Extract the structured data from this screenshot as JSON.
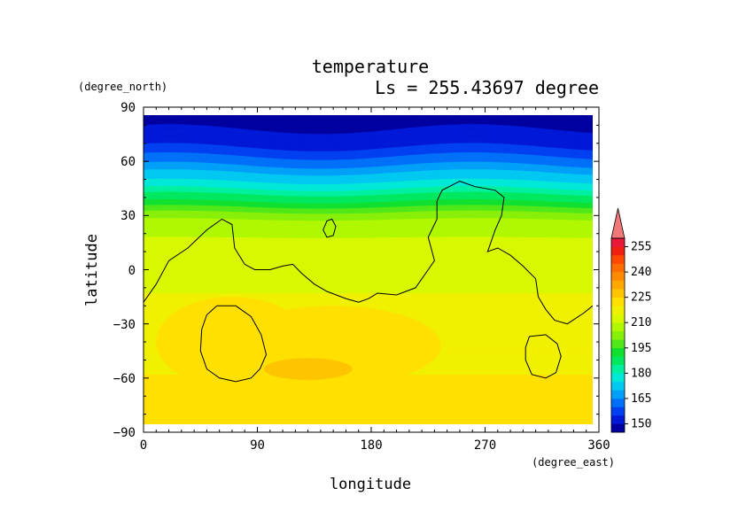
{
  "chart_data": {
    "type": "heatmap",
    "title": "temperature",
    "subtitle": "Ls = 255.43697 degree",
    "xlabel": "longitude",
    "ylabel": "latitude",
    "x_units": "(degree_east)",
    "y_units": "(degree_north)",
    "xlim": [
      0,
      360
    ],
    "ylim": [
      -90,
      90
    ],
    "x_ticks": [
      "0",
      "90",
      "180",
      "270",
      "360"
    ],
    "y_ticks": [
      "90",
      "60",
      "30",
      "0",
      "−30",
      "−60",
      "−90"
    ],
    "colorbar": {
      "labels": [
        "255",
        "240",
        "225",
        "210",
        "195",
        "180",
        "165",
        "150"
      ],
      "levels": [
        145,
        150,
        155,
        160,
        165,
        170,
        175,
        180,
        185,
        190,
        195,
        200,
        205,
        210,
        215,
        220,
        225,
        230,
        235,
        240,
        245,
        250,
        255,
        260
      ],
      "colors": [
        "#0000a0",
        "#0018d8",
        "#0040f0",
        "#0070f8",
        "#00a0f8",
        "#00c8f0",
        "#00e8d8",
        "#00f0a0",
        "#00e860",
        "#10e030",
        "#50e818",
        "#88f008",
        "#b0f800",
        "#d8f800",
        "#f0f000",
        "#ffe000",
        "#ffc400",
        "#ffa800",
        "#ff8c00",
        "#ff6c00",
        "#ff4800",
        "#f02010",
        "#e81838"
      ],
      "over_color": "#f07878"
    },
    "lat_profile": [
      {
        "lat": -88,
        "temp": 224
      },
      {
        "lat": -70,
        "temp": 223
      },
      {
        "lat": -58,
        "temp": 220
      },
      {
        "lat": -40,
        "temp": 219
      },
      {
        "lat": -20,
        "temp": 216
      },
      {
        "lat": 0,
        "temp": 213
      },
      {
        "lat": 15,
        "temp": 211
      },
      {
        "lat": 25,
        "temp": 208
      },
      {
        "lat": 32,
        "temp": 200
      },
      {
        "lat": 38,
        "temp": 190
      },
      {
        "lat": 45,
        "temp": 180
      },
      {
        "lat": 52,
        "temp": 172
      },
      {
        "lat": 60,
        "temp": 163
      },
      {
        "lat": 68,
        "temp": 155
      },
      {
        "lat": 78,
        "temp": 150
      },
      {
        "lat": 88,
        "temp": 148
      }
    ],
    "warm_patches": [
      {
        "lon": 150,
        "lat": -42,
        "rlon": 85,
        "rlat": 22,
        "temp": 221
      },
      {
        "lon": 70,
        "lat": -40,
        "rlon": 60,
        "rlat": 25,
        "temp": 221
      },
      {
        "lon": 130,
        "lat": -55,
        "rlon": 35,
        "rlat": 6,
        "temp": 226
      }
    ],
    "contours": [
      [
        [
          0,
          -18
        ],
        [
          10,
          -8
        ],
        [
          20,
          5
        ],
        [
          35,
          12
        ],
        [
          50,
          22
        ],
        [
          62,
          28
        ],
        [
          70,
          25
        ],
        [
          72,
          12
        ],
        [
          80,
          3
        ],
        [
          88,
          0
        ],
        [
          100,
          0
        ],
        [
          110,
          2
        ],
        [
          118,
          3
        ],
        [
          125,
          -2
        ],
        [
          135,
          -8
        ],
        [
          145,
          -12
        ],
        [
          160,
          -16
        ],
        [
          170,
          -18
        ],
        [
          178,
          -16
        ],
        [
          185,
          -13
        ],
        [
          200,
          -14
        ],
        [
          215,
          -10
        ],
        [
          225,
          0
        ],
        [
          230,
          5
        ],
        [
          225,
          18
        ],
        [
          232,
          28
        ],
        [
          232,
          38
        ],
        [
          236,
          44
        ],
        [
          250,
          49
        ],
        [
          262,
          46
        ],
        [
          278,
          44
        ],
        [
          285,
          40
        ],
        [
          283,
          30
        ],
        [
          278,
          22
        ],
        [
          272,
          10
        ],
        [
          280,
          12
        ],
        [
          290,
          8
        ],
        [
          300,
          2
        ],
        [
          310,
          -5
        ],
        [
          312,
          -15
        ],
        [
          318,
          -22
        ],
        [
          325,
          -28
        ],
        [
          335,
          -30
        ],
        [
          348,
          -24
        ],
        [
          355,
          -20
        ]
      ],
      [
        [
          142,
          22
        ],
        [
          145,
          27
        ],
        [
          149,
          28
        ],
        [
          152,
          24
        ],
        [
          150,
          19
        ],
        [
          145,
          18
        ],
        [
          142,
          22
        ]
      ],
      [
        [
          58,
          -20
        ],
        [
          73,
          -20
        ],
        [
          85,
          -26
        ],
        [
          93,
          -36
        ],
        [
          97,
          -47
        ],
        [
          92,
          -55
        ],
        [
          85,
          -60
        ],
        [
          73,
          -62
        ],
        [
          60,
          -60
        ],
        [
          50,
          -55
        ],
        [
          45,
          -45
        ],
        [
          46,
          -33
        ],
        [
          50,
          -25
        ],
        [
          58,
          -20
        ]
      ],
      [
        [
          305,
          -37
        ],
        [
          318,
          -36
        ],
        [
          327,
          -41
        ],
        [
          330,
          -48
        ],
        [
          326,
          -57
        ],
        [
          318,
          -60
        ],
        [
          307,
          -58
        ],
        [
          302,
          -50
        ],
        [
          302,
          -43
        ],
        [
          305,
          -37
        ]
      ]
    ]
  }
}
